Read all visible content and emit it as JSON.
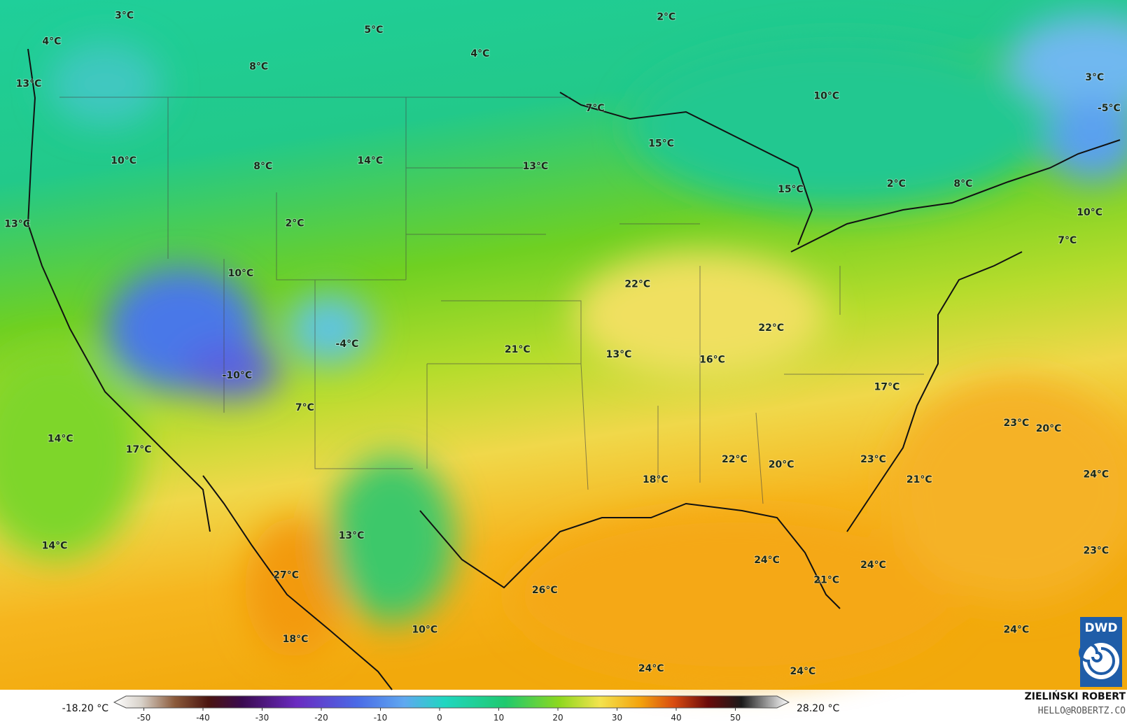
{
  "map": {
    "labels": [
      "3°C",
      "4°C",
      "5°C",
      "4°C",
      "8°C",
      "2°C",
      "13°C",
      "10°C",
      "3°C",
      "7°C",
      "-5°C",
      "15°C",
      "10°C",
      "14°C",
      "8°C",
      "13°C",
      "2°C",
      "8°C",
      "15°C",
      "10°C",
      "13°C",
      "2°C",
      "7°C",
      "10°C",
      "22°C",
      "22°C",
      "-4°C",
      "21°C",
      "13°C",
      "16°C",
      "-10°C",
      "17°C",
      "7°C",
      "23°C",
      "20°C",
      "14°C",
      "17°C",
      "23°C",
      "22°C",
      "20°C",
      "24°C",
      "21°C",
      "18°C",
      "13°C",
      "14°C",
      "23°C",
      "24°C",
      "24°C",
      "27°C",
      "21°C",
      "26°C",
      "10°C",
      "24°C",
      "18°C",
      "24°C",
      "24°C"
    ],
    "logo": "DWD"
  },
  "colorbar": {
    "min_label": "-18.20 °C",
    "max_label": "28.20 °C",
    "ticks": [
      -50,
      -40,
      -30,
      -20,
      -10,
      0,
      10,
      20,
      30,
      40,
      50
    ]
  },
  "credit": {
    "author": "ZIELIŃSKI ROBERT",
    "contact": "HELLO@ROBERTZ.CO"
  }
}
